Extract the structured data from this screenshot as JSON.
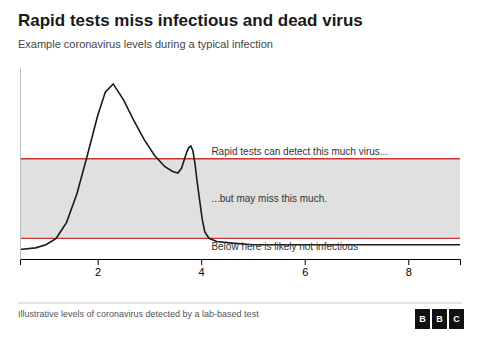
{
  "chart_data": {
    "type": "line",
    "title": "Rapid tests miss infectious and dead virus",
    "subtitle": "Example coronavirus levels during a typical infection",
    "footer": "Illustrative levels of coronavirus detected by a lab-based test",
    "annotations": [
      "Rapid tests can detect this much virus...",
      "...but may miss this much.",
      "Below here is likely not infectious"
    ],
    "logo": [
      "B",
      "B",
      "C"
    ],
    "x": [
      0.5,
      0.8,
      1.0,
      1.2,
      1.4,
      1.6,
      1.8,
      2.0,
      2.15,
      2.3,
      2.5,
      2.7,
      2.9,
      3.1,
      3.3,
      3.45,
      3.55,
      3.62,
      3.67,
      3.72,
      3.76,
      3.8,
      3.84,
      3.88,
      3.92,
      3.97,
      4.02,
      4.07,
      4.15,
      4.3,
      4.6,
      5.0,
      5.5,
      6.0,
      6.5,
      7.0,
      7.5,
      8.0,
      8.5,
      9.0
    ],
    "values": [
      0.01,
      0.02,
      0.04,
      0.08,
      0.18,
      0.36,
      0.6,
      0.85,
      1.0,
      1.05,
      0.95,
      0.82,
      0.7,
      0.6,
      0.53,
      0.5,
      0.49,
      0.52,
      0.57,
      0.62,
      0.65,
      0.66,
      0.63,
      0.55,
      0.44,
      0.32,
      0.2,
      0.12,
      0.08,
      0.06,
      0.05,
      0.04,
      0.04,
      0.04,
      0.04,
      0.04,
      0.04,
      0.04,
      0.04,
      0.04
    ],
    "color": "#1a1a1a",
    "thresholds": {
      "values": [
        0.58,
        0.08
      ],
      "color": "#cc3333"
    },
    "xlim": [
      0.5,
      9.0
    ],
    "ylim": [
      -0.05,
      1.15
    ],
    "xticks": [
      2,
      4,
      6,
      8
    ],
    "tick_labels": "x",
    "grid": false
  }
}
